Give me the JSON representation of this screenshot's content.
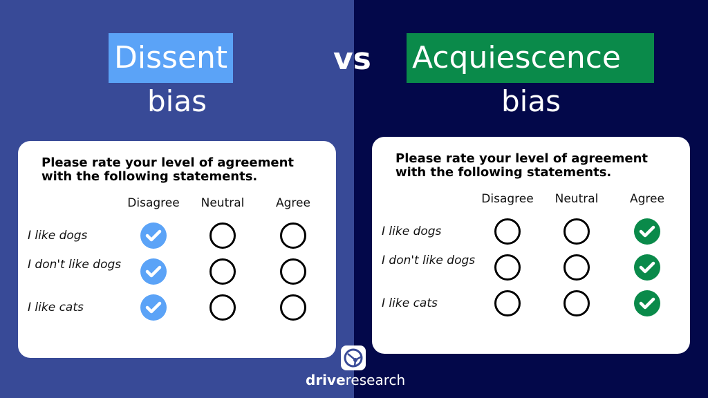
{
  "left": {
    "label": "Dissent",
    "subtitle": "bias",
    "label_color": "#5ba3f7",
    "bg": "#384a97",
    "selected": "Disagree"
  },
  "vs": "vs",
  "right": {
    "label": "Acquiescence",
    "subtitle": "bias",
    "label_color": "#0a8a4a",
    "bg": "#03084a",
    "selected": "Agree"
  },
  "survey": {
    "question": "Please rate your level of agreement with the following statements.",
    "columns": [
      "Disagree",
      "Neutral",
      "Agree"
    ],
    "rows": [
      "I like dogs",
      "I don't like dogs",
      "I like cats"
    ]
  },
  "brand": {
    "bold": "drive",
    "light": "research",
    "icon": "steering-wheel-icon"
  }
}
